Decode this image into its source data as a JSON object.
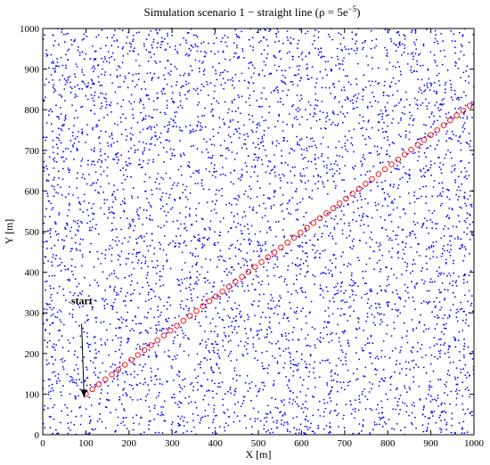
{
  "chart_data": {
    "type": "scatter",
    "title": "Simulation scenario 1 − straight line (ρ = 5e",
    "title_sup": "−5",
    "title_close": ")",
    "xlabel": "X [m]",
    "ylabel": "Y [m]",
    "xlim": [
      0,
      1000
    ],
    "ylim": [
      0,
      1000
    ],
    "xticks": [
      0,
      100,
      200,
      300,
      400,
      500,
      600,
      700,
      800,
      900,
      1000
    ],
    "yticks": [
      0,
      100,
      200,
      300,
      400,
      500,
      600,
      700,
      800,
      900,
      1000
    ],
    "grid": false,
    "series": [
      {
        "marker": "dot",
        "color": "#0000ff",
        "count": 5000,
        "distribution": "uniform random over [0,1000] x [0,1000]"
      },
      {
        "marker": "circle",
        "color": "#ff0000",
        "x_start": 100,
        "y_start": 100,
        "x_end": 990,
        "y_end": 810,
        "num_points": 60
      }
    ],
    "annotations": [
      {
        "text": "start",
        "x": 70,
        "y": 330,
        "arrow_to": [
          100,
          100
        ]
      }
    ]
  }
}
